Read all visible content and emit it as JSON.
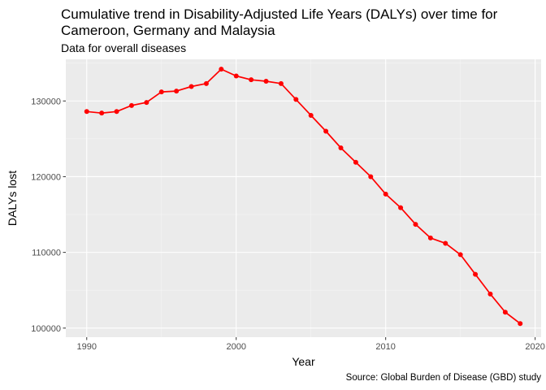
{
  "chart_data": {
    "type": "line",
    "title": "Cumulative trend in Disability-Adjusted Life Years (DALYs) over time for Cameroon, Germany and Malaysia",
    "subtitle": "Data for overall diseases",
    "caption": "Source: Global Burden of Disease (GBD) study",
    "xlabel": "Year",
    "ylabel": "DALYs lost",
    "xlim": [
      1988.6,
      2020.4
    ],
    "ylim": [
      98800,
      135500
    ],
    "x_ticks": [
      1990,
      2000,
      2010,
      2020
    ],
    "y_ticks": [
      100000,
      110000,
      120000,
      130000
    ],
    "grid": true,
    "legend": "none",
    "series": [
      {
        "color": "#ff0000",
        "x": [
          1990,
          1991,
          1992,
          1993,
          1994,
          1995,
          1996,
          1997,
          1998,
          1999,
          2000,
          2001,
          2002,
          2003,
          2004,
          2005,
          2006,
          2007,
          2008,
          2009,
          2010,
          2011,
          2012,
          2013,
          2014,
          2015,
          2016,
          2017,
          2018,
          2019
        ],
        "y": [
          128600,
          128400,
          128600,
          129400,
          129800,
          131200,
          131300,
          131900,
          132300,
          134200,
          133300,
          132800,
          132600,
          132300,
          130200,
          128100,
          126000,
          123800,
          121900,
          120000,
          117700,
          115900,
          113700,
          111900,
          111200,
          109700,
          107100,
          104500,
          102100,
          100600
        ]
      }
    ]
  }
}
